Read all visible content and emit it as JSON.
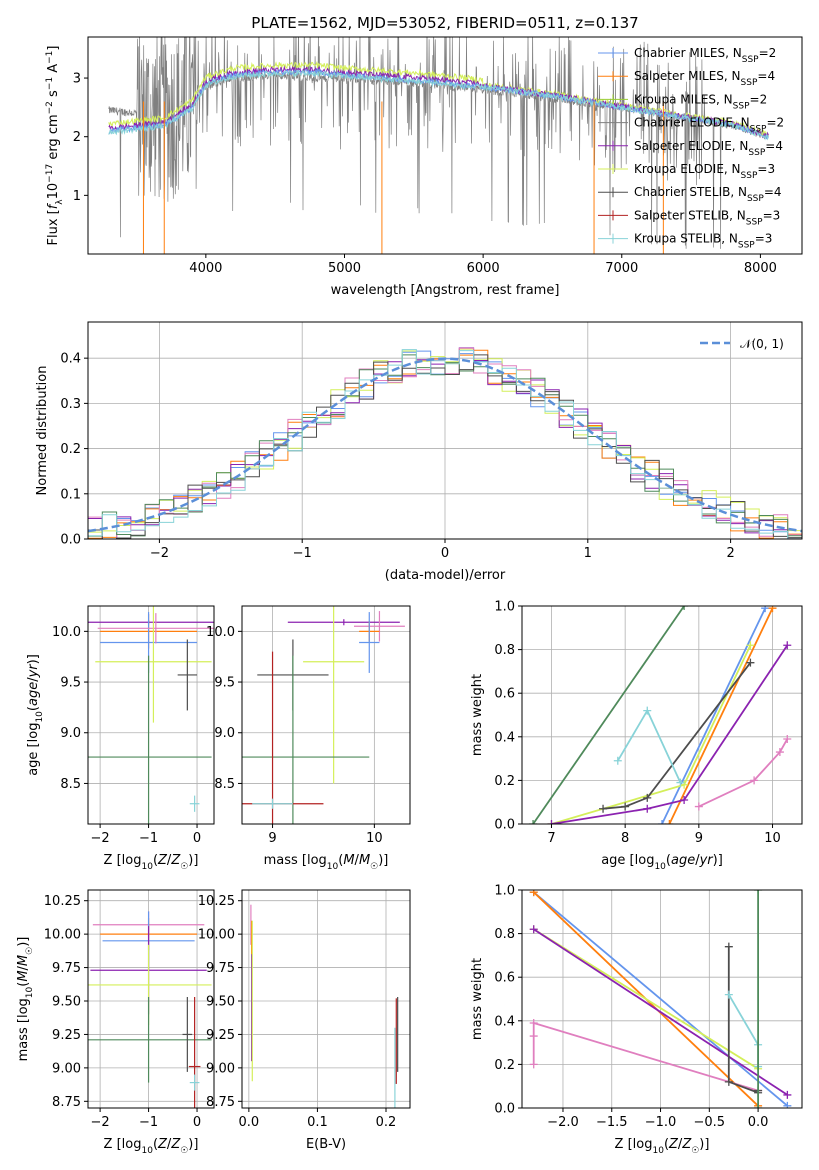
{
  "figure": {
    "title": "PLATE=1562, MJD=53052, FIBERID=0511, z=0.137"
  },
  "colors": {
    "Chabrier MILES": "#6495ED",
    "Salpeter MILES": "#ff7f0e",
    "Kroupa MILES": "#9ACD32",
    "Chabrier ELODIE": "#808080",
    "Salpeter ELODIE": "#8B22B0",
    "Kroupa ELODIE": "#d4ef5a",
    "Chabrier STELIB": "#4d4d4d",
    "Salpeter STELIB": "#b22222",
    "Kroupa STELIB": "#88d3d8",
    "pink": "#e07fbf",
    "darkgreen": "#4f8a5b"
  },
  "chart_data": [
    {
      "type": "line",
      "panel": "spectrum",
      "xlabel": "wavelength [Angstrom, rest frame]",
      "ylabel": "Flux [f_λ 10^-17 erg cm^-2 s^-1 A^-1]",
      "xlim": [
        3150,
        8300
      ],
      "ylim": [
        0,
        3.7
      ],
      "xticks": [
        4000,
        5000,
        6000,
        7000,
        8000
      ],
      "yticks": [
        1,
        2,
        3
      ],
      "legend_position": "upper right",
      "legend": [
        "Chabrier MILES, N_SSP=2",
        "Salpeter MILES, N_SSP=4",
        "Kroupa MILES, N_SSP=2",
        "Chabrier ELODIE, N_SSP=2",
        "Salpeter ELODIE, N_SSP=4",
        "Kroupa ELODIE, N_SSP=3",
        "Chabrier STELIB, N_SSP=4",
        "Salpeter STELIB, N_SSP=3",
        "Kroupa STELIB, N_SSP=3"
      ],
      "model_continuum": {
        "x": [
          3300,
          3500,
          3700,
          3900,
          4000,
          4200,
          4500,
          4800,
          5000,
          5300,
          5600,
          6000,
          6500,
          7000,
          7400,
          7800,
          8050
        ],
        "y": [
          2.1,
          2.15,
          2.2,
          2.5,
          2.9,
          3.05,
          3.1,
          3.1,
          3.05,
          3.0,
          2.95,
          2.85,
          2.7,
          2.5,
          2.35,
          2.2,
          2.0
        ]
      },
      "data_continuum": {
        "x": [
          3300,
          3500,
          3700,
          3900,
          4000,
          4200,
          4500,
          4800,
          5000,
          5300,
          5600,
          6000,
          6500,
          7000,
          7400,
          7800,
          8050
        ],
        "y": [
          2.45,
          2.4,
          2.35,
          2.55,
          2.85,
          3.0,
          3.05,
          3.0,
          3.0,
          2.95,
          2.9,
          2.8,
          2.65,
          2.5,
          2.35,
          2.2,
          2.0
        ]
      }
    },
    {
      "type": "line",
      "panel": "residual-distribution",
      "xlabel": "(data-model)/error",
      "ylabel": "Normed distribution",
      "xlim": [
        -2.5,
        2.5
      ],
      "ylim": [
        0,
        0.48
      ],
      "xticks": [
        -2,
        -1,
        0,
        1,
        2
      ],
      "yticks": [
        0.0,
        0.1,
        0.2,
        0.3,
        0.4
      ],
      "grid": true,
      "legend": [
        "𝒩(0, 1)"
      ],
      "gaussian": {
        "mean": 0,
        "sigma": 1
      }
    },
    {
      "type": "scatter",
      "panel": "age-vs-metallicity",
      "xlabel": "Z [log10(Z/Z☉)]",
      "ylabel": "age  [log10(age/yr)]",
      "xlim": [
        -2.25,
        0.35
      ],
      "ylim": [
        8.1,
        10.25
      ],
      "xticks": [
        -2,
        -1,
        0
      ],
      "yticks": [
        8.5,
        9.0,
        9.5,
        10.0
      ],
      "grid": true,
      "points": [
        {
          "series": "Salpeter ELODIE",
          "x": -1.0,
          "y": 10.09,
          "xerr": 2.2,
          "yerr": 0.02
        },
        {
          "series": "Salpeter MILES",
          "x": -1.0,
          "y": 10.0,
          "xerr": 1.0,
          "yerr": 0.17
        },
        {
          "series": "Chabrier MILES",
          "x": -1.0,
          "y": 9.89,
          "xerr": 1.0,
          "yerr": 0.3
        },
        {
          "series": "pink",
          "x": -0.85,
          "y": 10.03,
          "xerr": 1.2,
          "yerr": 0.15
        },
        {
          "series": "Kroupa ELODIE",
          "x": -0.9,
          "y": 9.7,
          "xerr": 1.2,
          "yerr": 0.6
        },
        {
          "series": "Chabrier STELIB",
          "x": -0.2,
          "y": 9.57,
          "xerr": 0.2,
          "yerr": 0.35
        },
        {
          "series": "darkgreen",
          "x": -1.0,
          "y": 8.76,
          "xerr": 1.3,
          "yerr": 1.0
        },
        {
          "series": "Kroupa STELIB",
          "x": -0.05,
          "y": 8.3,
          "xerr": 0.1,
          "yerr": 0.08
        }
      ]
    },
    {
      "type": "scatter",
      "panel": "age-vs-mass",
      "xlabel": "mass [log10(M/M☉)]",
      "ylabel": "",
      "xlim": [
        8.7,
        10.35
      ],
      "ylim": [
        8.1,
        10.25
      ],
      "xticks": [
        9,
        10
      ],
      "yticks": [
        8.5,
        9.0,
        9.5,
        10.0
      ],
      "grid": true,
      "points": [
        {
          "series": "Salpeter ELODIE",
          "x": 9.7,
          "y": 10.09,
          "xerr": 0.55,
          "yerr": 0.03
        },
        {
          "series": "pink",
          "x": 10.05,
          "y": 10.05,
          "xerr": 0.25,
          "yerr": 0.15
        },
        {
          "series": "Salpeter MILES",
          "x": 9.95,
          "y": 10.0,
          "xerr": 0.1,
          "yerr": 0.1
        },
        {
          "series": "Chabrier MILES",
          "x": 9.95,
          "y": 9.89,
          "xerr": 0.1,
          "yerr": 0.3
        },
        {
          "series": "Chabrier STELIB",
          "x": 9.2,
          "y": 9.57,
          "xerr": 0.35,
          "yerr": 0.35
        },
        {
          "series": "Kroupa ELODIE",
          "x": 9.6,
          "y": 9.7,
          "xerr": 0.3,
          "yerr": 1.2
        },
        {
          "series": "darkgreen",
          "x": 9.2,
          "y": 8.76,
          "xerr": 0.75,
          "yerr": 1.0
        },
        {
          "series": "Salpeter STELIB",
          "x": 9.0,
          "y": 8.3,
          "xerr": 0.5,
          "yerr": 1.5
        },
        {
          "series": "Kroupa STELIB",
          "x": 9.0,
          "y": 8.3,
          "xerr": 0.2,
          "yerr": 0.05
        }
      ]
    },
    {
      "type": "line",
      "panel": "mass-weight-vs-age",
      "xlabel": "age  [log10(age/yr)]",
      "ylabel": "mass weight",
      "xlim": [
        6.6,
        10.4
      ],
      "ylim": [
        0,
        1
      ],
      "xticks": [
        7,
        8,
        9,
        10
      ],
      "yticks": [
        0.0,
        0.2,
        0.4,
        0.6,
        0.8,
        1.0
      ],
      "grid": true,
      "series": [
        {
          "name": "darkgreen",
          "x": [
            6.75,
            8.8
          ],
          "y": [
            0.0,
            1.0
          ]
        },
        {
          "name": "Chabrier MILES",
          "x": [
            8.5,
            9.9
          ],
          "y": [
            0.0,
            0.99
          ]
        },
        {
          "name": "Salpeter MILES",
          "x": [
            8.6,
            10.0
          ],
          "y": [
            0.0,
            0.99
          ]
        },
        {
          "name": "Kroupa ELODIE",
          "x": [
            7.0,
            8.8,
            9.7
          ],
          "y": [
            0.0,
            0.18,
            0.82
          ]
        },
        {
          "name": "Chabrier STELIB",
          "x": [
            7.7,
            8.0,
            8.3,
            9.7
          ],
          "y": [
            0.07,
            0.08,
            0.12,
            0.74
          ]
        },
        {
          "name": "Salpeter ELODIE",
          "x": [
            7.0,
            8.3,
            8.8,
            10.2
          ],
          "y": [
            0.0,
            0.07,
            0.11,
            0.82
          ]
        },
        {
          "name": "Kroupa STELIB",
          "x": [
            7.9,
            8.3,
            8.75
          ],
          "y": [
            0.29,
            0.52,
            0.19
          ]
        },
        {
          "name": "pink",
          "x": [
            9.0,
            9.75,
            10.1,
            10.2
          ],
          "y": [
            0.08,
            0.2,
            0.33,
            0.39
          ]
        }
      ]
    },
    {
      "type": "scatter",
      "panel": "mass-vs-metallicity",
      "xlabel": "Z [log10(Z/Z☉)]",
      "ylabel": "mass [log10(M/M☉)]",
      "xlim": [
        -2.25,
        0.35
      ],
      "ylim": [
        8.7,
        10.33
      ],
      "xticks": [
        -2,
        -1,
        0
      ],
      "yticks": [
        8.75,
        9.0,
        9.25,
        9.5,
        9.75,
        10.0,
        10.25
      ],
      "grid": true,
      "points": [
        {
          "series": "pink",
          "x": -1.0,
          "y": 10.07,
          "xerr": 1.15,
          "yerr": 0.1
        },
        {
          "series": "Salpeter MILES",
          "x": -1.0,
          "y": 10.0,
          "xerr": 1.0,
          "yerr": 0.12
        },
        {
          "series": "Chabrier MILES",
          "x": -1.0,
          "y": 9.95,
          "xerr": 0.95,
          "yerr": 0.22
        },
        {
          "series": "Salpeter ELODIE",
          "x": -1.0,
          "y": 9.73,
          "xerr": 1.2,
          "yerr": 0.33
        },
        {
          "series": "Kroupa ELODIE",
          "x": -1.0,
          "y": 9.62,
          "xerr": 1.3,
          "yerr": 0.3
        },
        {
          "series": "darkgreen",
          "x": -1.0,
          "y": 9.21,
          "xerr": 1.3,
          "yerr": 0.32
        },
        {
          "series": "Chabrier STELIB",
          "x": -0.2,
          "y": 9.25,
          "xerr": 0.1,
          "yerr": 0.28
        },
        {
          "series": "Salpeter STELIB",
          "x": -0.05,
          "y": 9.01,
          "xerr": 0.12,
          "yerr": 0.52
        },
        {
          "series": "Kroupa STELIB",
          "x": -0.05,
          "y": 8.89,
          "xerr": 0.1,
          "yerr": 0.06
        }
      ]
    },
    {
      "type": "scatter",
      "panel": "mass-vs-extinction",
      "xlabel": "E(B-V)",
      "ylabel": "",
      "xlim": [
        -0.01,
        0.235
      ],
      "ylim": [
        8.7,
        10.33
      ],
      "xticks": [
        0.0,
        0.1,
        0.2
      ],
      "yticks": [
        8.75,
        9.0,
        9.25,
        9.5,
        9.75,
        10.0,
        10.25
      ],
      "grid": true,
      "points": [
        {
          "series": "pink",
          "x": 0.003,
          "y": 10.07,
          "yerr": 0.15
        },
        {
          "series": "Salpeter MILES",
          "x": 0.004,
          "y": 9.95,
          "yerr": 0.15
        },
        {
          "series": "Salpeter ELODIE",
          "x": 0.004,
          "y": 9.45,
          "yerr": 0.4
        },
        {
          "series": "Kroupa ELODIE",
          "x": 0.005,
          "y": 9.5,
          "yerr": 0.6
        },
        {
          "series": "Salpeter STELIB",
          "x": 0.215,
          "y": 9.2,
          "yerr": 0.32
        },
        {
          "series": "Chabrier STELIB",
          "x": 0.217,
          "y": 9.25,
          "yerr": 0.28
        },
        {
          "series": "Kroupa STELIB",
          "x": 0.213,
          "y": 9.0,
          "yerr": 0.3
        }
      ]
    },
    {
      "type": "line",
      "panel": "mass-weight-vs-metallicity",
      "xlabel": "Z [log10(Z/Z☉)]",
      "ylabel": "mass weight",
      "xlim": [
        -2.42,
        0.45
      ],
      "ylim": [
        0,
        1
      ],
      "xticks": [
        -2.0,
        -1.5,
        -1.0,
        -0.5,
        0.0
      ],
      "yticks": [
        0.0,
        0.2,
        0.4,
        0.6,
        0.8,
        1.0
      ],
      "grid": true,
      "series": [
        {
          "name": "Chabrier MILES",
          "x": [
            -2.3,
            0.3
          ],
          "y": [
            0.99,
            0.01
          ]
        },
        {
          "name": "Salpeter MILES",
          "x": [
            -2.3,
            0.0
          ],
          "y": [
            0.99,
            0.01
          ]
        },
        {
          "name": "Kroupa ELODIE",
          "x": [
            -2.3,
            0.0
          ],
          "y": [
            0.82,
            0.18
          ]
        },
        {
          "name": "Salpeter ELODIE",
          "x": [
            -2.3,
            0.3
          ],
          "y": [
            0.82,
            0.06
          ]
        },
        {
          "name": "pink",
          "x": [
            -2.3,
            -2.3,
            -2.3,
            0.0
          ],
          "y": [
            0.2,
            0.33,
            0.39,
            0.08
          ]
        },
        {
          "name": "Chabrier STELIB",
          "x": [
            -0.3,
            -0.3,
            0.0,
            0.0
          ],
          "y": [
            0.74,
            0.12,
            0.07,
            0.08
          ]
        },
        {
          "name": "Kroupa STELIB",
          "x": [
            -0.3,
            0.0,
            0.0
          ],
          "y": [
            0.52,
            0.29,
            0.19
          ]
        },
        {
          "name": "darkgreen",
          "x": [
            0.0,
            0.0
          ],
          "y": [
            0.0,
            1.0
          ]
        }
      ]
    }
  ]
}
